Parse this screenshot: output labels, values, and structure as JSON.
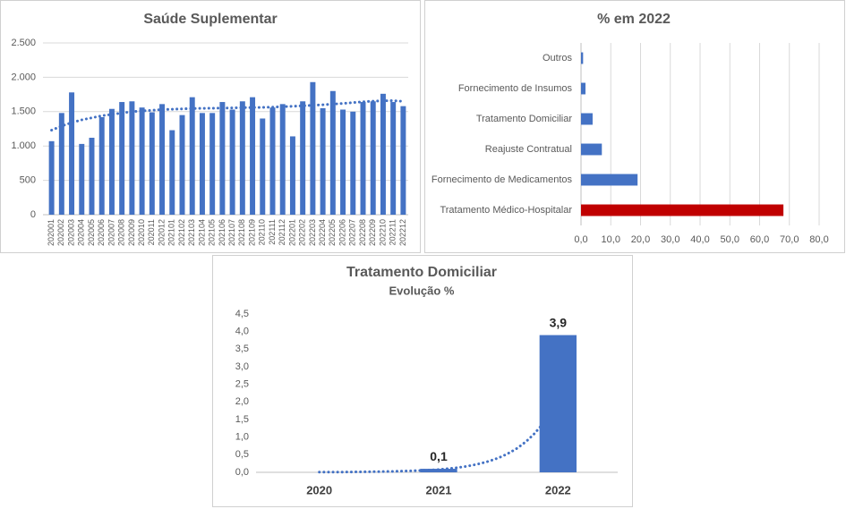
{
  "chart_data": [
    {
      "type": "bar",
      "title": "Saúde Suplementar",
      "color": "#4472c4",
      "trend_color": "#4472c4",
      "categories": [
        "202001",
        "202002",
        "202003",
        "202004",
        "202005",
        "202006",
        "202007",
        "202008",
        "202009",
        "202010",
        "202011",
        "202012",
        "202101",
        "202102",
        "202103",
        "202104",
        "202105",
        "202106",
        "202107",
        "202108",
        "202109",
        "202110",
        "202111",
        "202112",
        "202201",
        "202202",
        "202203",
        "202204",
        "202205",
        "202206",
        "202207",
        "202208",
        "202209",
        "202210",
        "202211",
        "202212"
      ],
      "values": [
        1070,
        1480,
        1780,
        1030,
        1120,
        1420,
        1540,
        1640,
        1650,
        1560,
        1490,
        1610,
        1230,
        1450,
        1710,
        1480,
        1480,
        1640,
        1530,
        1650,
        1710,
        1400,
        1560,
        1610,
        1140,
        1650,
        1930,
        1550,
        1800,
        1530,
        1500,
        1640,
        1650,
        1760,
        1640,
        1580
      ],
      "trend": [
        1230,
        1290,
        1340,
        1380,
        1410,
        1440,
        1460,
        1480,
        1500,
        1510,
        1520,
        1530,
        1535,
        1540,
        1545,
        1548,
        1550,
        1552,
        1555,
        1558,
        1560,
        1563,
        1567,
        1572,
        1578,
        1585,
        1592,
        1600,
        1610,
        1620,
        1632,
        1643,
        1652,
        1658,
        1660,
        1650
      ],
      "ylim": [
        0,
        2500
      ],
      "yticks": [
        0,
        500,
        {
          "value": 1000,
          "label": "1.000"
        },
        {
          "value": 1500,
          "label": "1.500"
        },
        {
          "value": 2000,
          "label": "2.000"
        },
        {
          "value": 2500,
          "label": "2.500"
        }
      ],
      "grid": true
    },
    {
      "type": "barh",
      "title": "% em 2022",
      "categories": [
        "Tratamento Médico-Hospitalar",
        "Fornecimento de Medicamentos",
        "Reajuste Contratual",
        "Tratamento Domiciliar",
        "Fornecimento de Insumos",
        "Outros"
      ],
      "values": [
        68,
        19,
        7,
        3.9,
        1.5,
        0.7
      ],
      "colors": [
        "#c00000",
        "#4472c4",
        "#4472c4",
        "#4472c4",
        "#4472c4",
        "#4472c4"
      ],
      "xlim": [
        0,
        80
      ],
      "xticks": [
        {
          "value": 0,
          "label": "0,0"
        },
        {
          "value": 10,
          "label": "10,0"
        },
        {
          "value": 20,
          "label": "20,0"
        },
        {
          "value": 30,
          "label": "30,0"
        },
        {
          "value": 40,
          "label": "40,0"
        },
        {
          "value": 50,
          "label": "50,0"
        },
        {
          "value": 60,
          "label": "60,0"
        },
        {
          "value": 70,
          "label": "70,0"
        },
        {
          "value": 80,
          "label": "80,0"
        }
      ],
      "grid": true
    },
    {
      "type": "bar",
      "title": "Tratamento Domiciliar",
      "subtitle": "Evolução %",
      "color": "#4472c4",
      "trend_color": "#4472c4",
      "categories": [
        "2020",
        "2021",
        "2022"
      ],
      "values": [
        0,
        0.1,
        3.9
      ],
      "value_labels": [
        null,
        "0,1",
        "3,9"
      ],
      "trend": [
        0.005,
        0.08,
        2.1
      ],
      "ylim": [
        0,
        4.5
      ],
      "yticks": [
        {
          "value": 0,
          "label": "0,0"
        },
        {
          "value": 0.5,
          "label": "0,5"
        },
        {
          "value": 1,
          "label": "1,0"
        },
        {
          "value": 1.5,
          "label": "1,5"
        },
        {
          "value": 2,
          "label": "2,0"
        },
        {
          "value": 2.5,
          "label": "2,5"
        },
        {
          "value": 3,
          "label": "3,0"
        },
        {
          "value": 3.5,
          "label": "3,5"
        },
        {
          "value": 4,
          "label": "4,0"
        },
        {
          "value": 4.5,
          "label": "4,5"
        }
      ],
      "grid": false
    }
  ]
}
